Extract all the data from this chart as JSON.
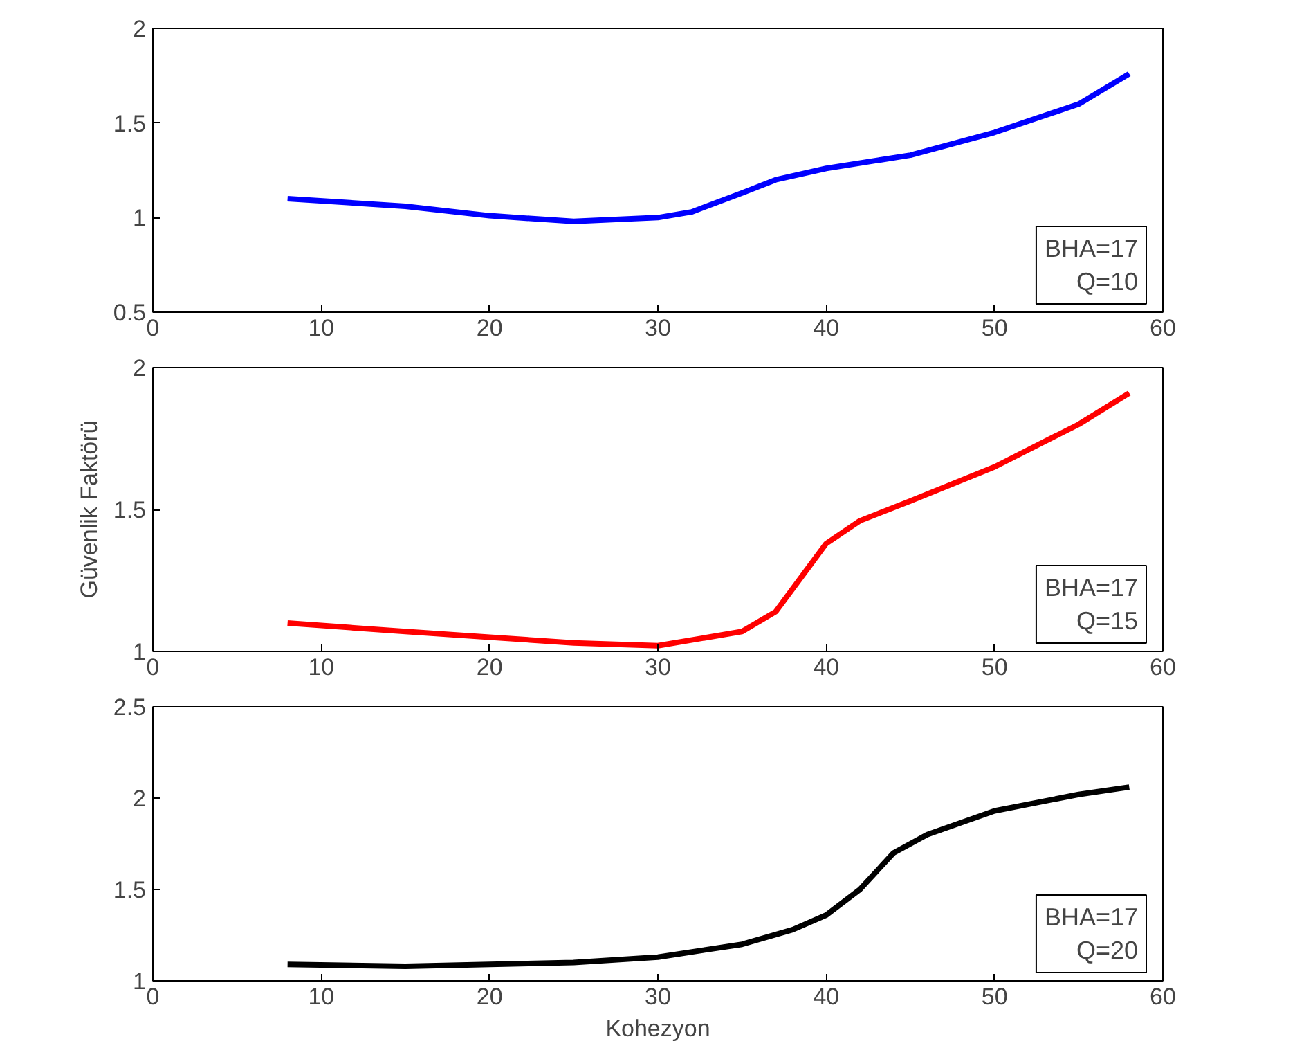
{
  "chart_data": [
    {
      "type": "line",
      "x": [
        8,
        15,
        20,
        25,
        30,
        32,
        35,
        37,
        40,
        45,
        50,
        55,
        58
      ],
      "series": [
        {
          "color": "#0000ff",
          "values": [
            1.1,
            1.06,
            1.01,
            0.98,
            1.0,
            1.03,
            1.13,
            1.2,
            1.26,
            1.33,
            1.45,
            1.6,
            1.76
          ]
        }
      ],
      "xlim": [
        0,
        60
      ],
      "xticks": [
        0,
        10,
        20,
        30,
        40,
        50,
        60
      ],
      "ylim": [
        0.5,
        2
      ],
      "yticks": [
        0.5,
        1,
        1.5,
        2
      ],
      "grid": false,
      "annotations": [
        "BHA=17",
        "Q=10"
      ]
    },
    {
      "type": "line",
      "x": [
        8,
        15,
        20,
        25,
        30,
        35,
        37,
        39,
        40,
        42,
        45,
        50,
        55,
        58
      ],
      "series": [
        {
          "color": "#ff0000",
          "values": [
            1.1,
            1.07,
            1.05,
            1.03,
            1.02,
            1.07,
            1.14,
            1.3,
            1.38,
            1.46,
            1.53,
            1.65,
            1.8,
            1.91
          ]
        }
      ],
      "xlim": [
        0,
        60
      ],
      "xticks": [
        0,
        10,
        20,
        30,
        40,
        50,
        60
      ],
      "ylim": [
        1,
        2
      ],
      "yticks": [
        1,
        1.5,
        2
      ],
      "ylabel": "Güvenlik Faktörü",
      "grid": false,
      "annotations": [
        "BHA=17",
        "Q=15"
      ]
    },
    {
      "type": "line",
      "x": [
        8,
        15,
        20,
        25,
        30,
        35,
        38,
        40,
        42,
        44,
        46,
        50,
        55,
        58
      ],
      "series": [
        {
          "color": "#000000",
          "values": [
            1.09,
            1.08,
            1.09,
            1.1,
            1.13,
            1.2,
            1.28,
            1.36,
            1.5,
            1.7,
            1.8,
            1.93,
            2.02,
            2.06
          ]
        }
      ],
      "xlim": [
        0,
        60
      ],
      "xticks": [
        0,
        10,
        20,
        30,
        40,
        50,
        60
      ],
      "ylim": [
        1,
        2.5
      ],
      "yticks": [
        1,
        1.5,
        2,
        2.5
      ],
      "xlabel": "Kohezyon",
      "grid": false,
      "annotations": [
        "BHA=17",
        "Q=20"
      ]
    }
  ]
}
